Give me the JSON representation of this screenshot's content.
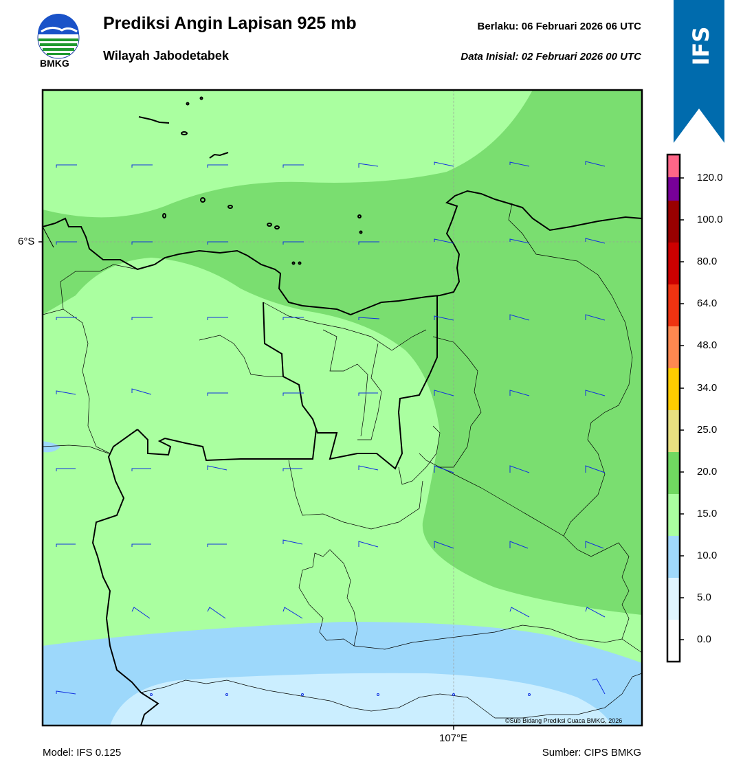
{
  "header": {
    "title": "Prediksi Angin Lapisan 925 mb",
    "subtitle": "Wilayah Jabodetabek",
    "valid": "Berlaku:  06 Februari 2026 06 UTC",
    "initial": "Data Inisial:  02 Februari 2026 00 UTC",
    "logo_text": "BMKG",
    "badge_text": "IFS",
    "badge_color": "#006bad"
  },
  "map": {
    "lat_label": "6°S",
    "lon_label": "107°E",
    "copyright": "©Sub Bidang Prediksi Cuaca BMKG, 2026",
    "icons": [
      "wind-barb-icon",
      "calm-circle-icon"
    ]
  },
  "footer": {
    "model": "Model: IFS 0.125",
    "source": "Sumber: CIPS BMKG"
  },
  "colorbar": {
    "labels": [
      "0.0",
      "5.0",
      "10.0",
      "15.0",
      "20.0",
      "25.0",
      "34.0",
      "48.0",
      "64.0",
      "80.0",
      "100.0",
      "120.0"
    ],
    "colors": [
      "#ffffff",
      "#e0f4ff",
      "#a0d8fa",
      "#aaffa0",
      "#70d860",
      "#e8e080",
      "#ffcc00",
      "#ff8850",
      "#ee3311",
      "#cc0000",
      "#990000",
      "#770099",
      "#ff6688"
    ]
  }
}
